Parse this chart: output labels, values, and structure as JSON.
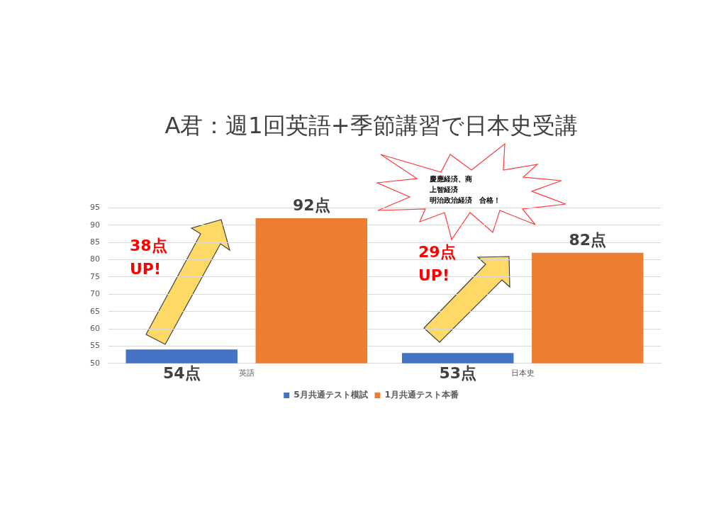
{
  "chart_data": {
    "type": "bar",
    "title": "A君：週1回英語+季節講習で日本史受講",
    "categories": [
      "英語",
      "日本史"
    ],
    "series": [
      {
        "name": "5月共通テスト模試",
        "color": "#4472c4",
        "values": [
          54,
          53
        ],
        "value_labels": [
          "54点",
          "53点"
        ]
      },
      {
        "name": "1月共通テスト本番",
        "color": "#ed7d31",
        "values": [
          92,
          82
        ],
        "value_labels": [
          "92点",
          "82点"
        ]
      }
    ],
    "ylim": [
      50,
      95
    ],
    "yticks": [
      50,
      55,
      60,
      65,
      70,
      75,
      80,
      85,
      90,
      95
    ],
    "grid": "y",
    "legend": "bottom",
    "annotations": [
      "38点\nUP!",
      "29点\nUP!",
      "慶應経済、商",
      "上智経済",
      "明治政治経済　合格！"
    ]
  }
}
